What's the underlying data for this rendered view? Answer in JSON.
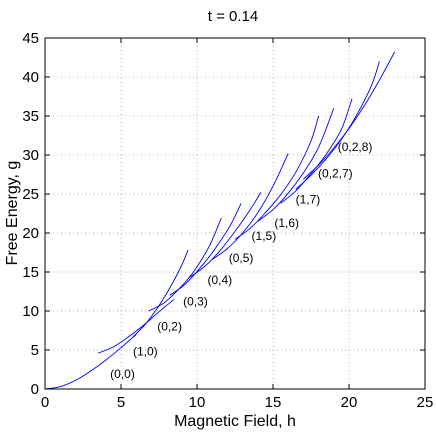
{
  "chart_data": {
    "type": "line",
    "title": "t = 0.14",
    "xlabel": "Magnetic Field, h",
    "ylabel": "Free Energy, g",
    "xlim": [
      0,
      25
    ],
    "ylim": [
      0,
      45
    ],
    "xticks": [
      0,
      5,
      10,
      15,
      20,
      25
    ],
    "yticks": [
      0,
      5,
      10,
      15,
      20,
      25,
      30,
      35,
      40,
      45
    ],
    "grid": true,
    "line_color": "#0000ff",
    "series": [
      {
        "x": [
          0,
          1,
          2,
          3,
          4,
          5,
          6
        ],
        "y": [
          0,
          0.3,
          1.1,
          2.3,
          3.7,
          5.3,
          7.0
        ]
      },
      {
        "x": [
          3.5,
          4.5,
          5.5,
          6.5,
          7.5,
          8.5
        ],
        "y": [
          4.6,
          5.4,
          6.7,
          8.2,
          9.9,
          11.5
        ]
      },
      {
        "x": [
          5.8,
          6.6,
          7.4,
          8.2,
          9.0,
          9.4
        ],
        "y": [
          6.7,
          8.3,
          10.4,
          12.9,
          15.9,
          17.8
        ]
      },
      {
        "x": [
          6.8,
          7.8,
          8.8,
          9.8,
          10.8,
          11.6
        ],
        "y": [
          10.0,
          11.0,
          12.8,
          15.1,
          18.3,
          21.9
        ]
      },
      {
        "x": [
          8.2,
          9.2,
          10.2,
          11.2,
          12.2,
          12.9
        ],
        "y": [
          12.0,
          13.4,
          15.5,
          18.0,
          21.0,
          23.8
        ]
      },
      {
        "x": [
          9.5,
          10.5,
          11.5,
          12.5,
          13.5,
          14.2
        ],
        "y": [
          14.3,
          15.7,
          17.7,
          20.2,
          23.0,
          25.2
        ]
      },
      {
        "x": [
          11.0,
          12.0,
          13.0,
          14.0,
          15.0,
          16.0
        ],
        "y": [
          16.6,
          18.0,
          20.0,
          22.6,
          26.0,
          30.2
        ]
      },
      {
        "x": [
          12.5,
          13.5,
          14.5,
          15.5,
          16.5,
          17.5,
          18.0
        ],
        "y": [
          19.2,
          20.6,
          22.6,
          24.9,
          27.8,
          31.8,
          35.0
        ]
      },
      {
        "x": [
          14.0,
          15.0,
          16.0,
          17.0,
          18.0,
          19.0
        ],
        "y": [
          21.5,
          23.0,
          25.1,
          27.7,
          31.0,
          36.0
        ]
      },
      {
        "x": [
          15.5,
          16.5,
          17.5,
          18.5,
          19.5,
          20.2
        ],
        "y": [
          23.8,
          25.4,
          27.6,
          30.1,
          33.3,
          37.2
        ]
      },
      {
        "x": [
          16.5,
          17.5,
          18.5,
          19.5,
          20.5,
          21.5,
          22.0
        ],
        "y": [
          25.6,
          27.4,
          29.5,
          32.0,
          35.1,
          39.0,
          42.0
        ]
      },
      {
        "x": [
          17.0,
          18.0,
          19.0,
          20.0,
          21.0,
          22.0,
          23.0
        ],
        "y": [
          26.9,
          28.7,
          30.9,
          33.4,
          36.3,
          39.6,
          43.2
        ]
      }
    ],
    "annotations": [
      {
        "text": "(0,0)",
        "x": 5.1,
        "y": 1.9
      },
      {
        "text": "(1,0)",
        "x": 6.6,
        "y": 4.8
      },
      {
        "text": "(0,2)",
        "x": 8.2,
        "y": 8.0
      },
      {
        "text": "(0,3)",
        "x": 9.9,
        "y": 11.2
      },
      {
        "text": "(0,4)",
        "x": 11.5,
        "y": 14.0
      },
      {
        "text": "(0,5)",
        "x": 12.9,
        "y": 16.8
      },
      {
        "text": "(1,5)",
        "x": 14.4,
        "y": 19.6
      },
      {
        "text": "(1,6)",
        "x": 15.9,
        "y": 21.3
      },
      {
        "text": "(1,7)",
        "x": 17.3,
        "y": 24.3
      },
      {
        "text": "(0,2,7)",
        "x": 19.1,
        "y": 27.6
      },
      {
        "text": "(0,2,8)",
        "x": 20.4,
        "y": 31.0
      }
    ]
  }
}
